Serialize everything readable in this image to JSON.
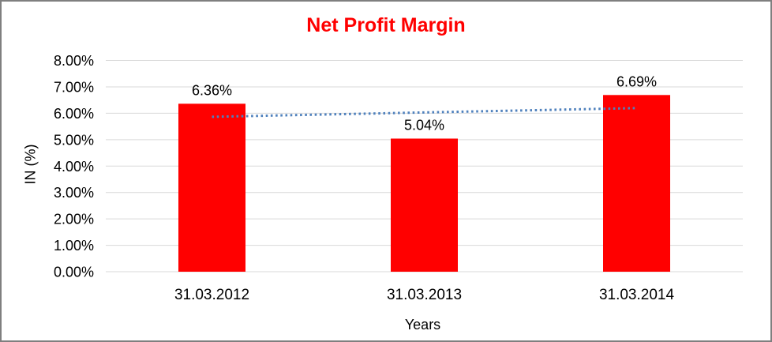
{
  "chart_data": {
    "type": "bar",
    "title": "Net Profit Margin",
    "xlabel": "Years",
    "ylabel": "IN (%)",
    "categories": [
      "31.03.2012",
      "31.03.2013",
      "31.03.2014"
    ],
    "values": [
      6.36,
      5.04,
      6.69
    ],
    "data_labels": [
      "6.36%",
      "5.04%",
      "6.69%"
    ],
    "yticks": [
      "0.00%",
      "1.00%",
      "2.00%",
      "3.00%",
      "4.00%",
      "5.00%",
      "6.00%",
      "7.00%",
      "8.00%"
    ],
    "ylim": [
      0,
      8
    ],
    "grid": "horizontal",
    "legend": "none",
    "bar_color": "#ff0000",
    "title_color": "#ff0000",
    "grid_color": "#d9d9d9",
    "trendline": {
      "type": "linear",
      "style": "dotted",
      "color": "#4f81bd"
    }
  }
}
